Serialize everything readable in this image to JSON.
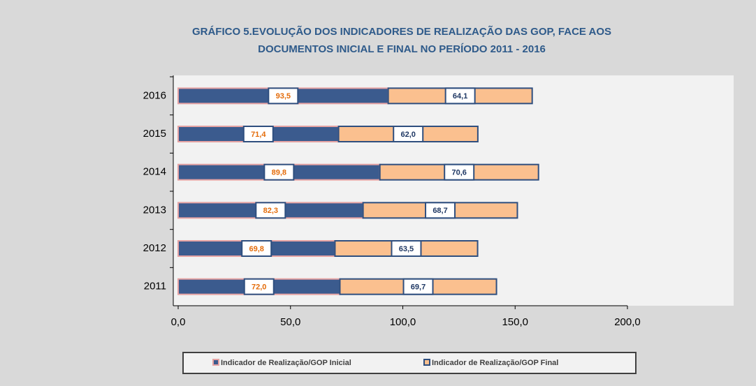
{
  "chart_data": {
    "type": "stacked-barh",
    "title": "GRÁFICO 5.EVOLUÇÃO DOS INDICADORES DE REALIZAÇÃO DAS GOP, FACE AOS",
    "subtitle": "DOCUMENTOS INICIAL E FINAL NO PERÍODO 2011 - 2016",
    "categories": [
      "2016",
      "2015",
      "2014",
      "2013",
      "2012",
      "2011"
    ],
    "series": [
      {
        "name": "Indicador de Realização/GOP  Inicial",
        "color": "#3b5b8e",
        "border": "#e6a3a3",
        "label_color": "#e46c0a",
        "values": [
          93.5,
          71.4,
          89.8,
          82.3,
          69.8,
          72.0
        ],
        "value_labels": [
          "93,5",
          "71,4",
          "89,8",
          "82,3",
          "69,8",
          "72,0"
        ]
      },
      {
        "name": "Indicador de Realização/GOP  Final",
        "color": "#fbc08f",
        "border": "#2f4f7f",
        "label_color": "#1f3864",
        "values": [
          64.1,
          62.0,
          70.6,
          68.7,
          63.5,
          69.7
        ],
        "value_labels": [
          "64,1",
          "62,0",
          "70,6",
          "68,7",
          "63,5",
          "69,7"
        ]
      }
    ],
    "xlim": [
      0,
      200
    ],
    "xticks": [
      {
        "value": 0,
        "label": "0,0"
      },
      {
        "value": 50,
        "label": "50,0"
      },
      {
        "value": 100,
        "label": "100,0"
      },
      {
        "value": 150,
        "label": "150,0"
      },
      {
        "value": 200,
        "label": "200,0"
      }
    ],
    "legend": "bottom"
  }
}
